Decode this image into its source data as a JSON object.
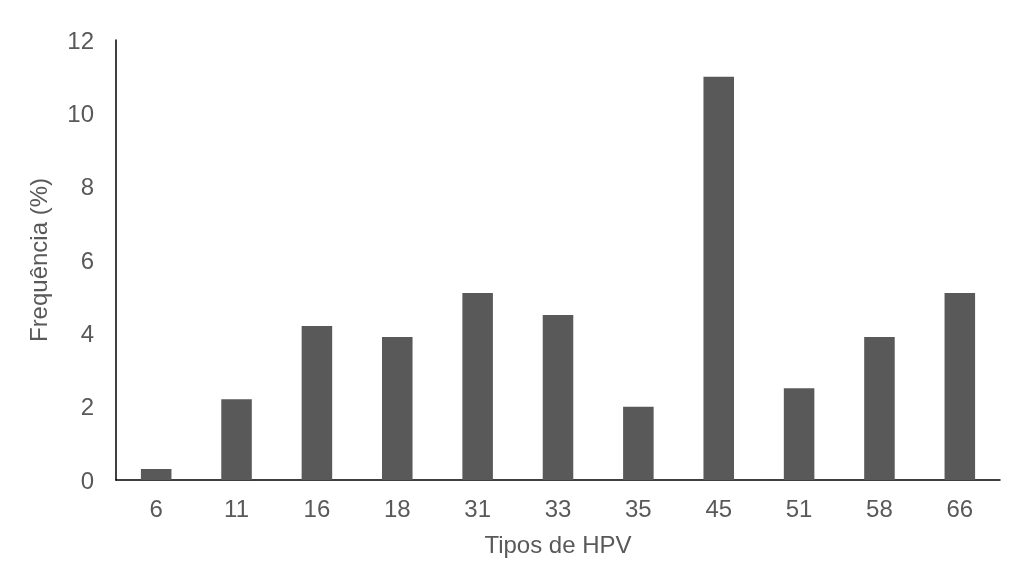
{
  "chart_data": {
    "type": "bar",
    "xlabel": "Tipos de HPV",
    "ylabel": "Frequência (%)",
    "categories": [
      "6",
      "11",
      "16",
      "18",
      "31",
      "33",
      "35",
      "45",
      "51",
      "58",
      "66"
    ],
    "values": [
      0.3,
      2.2,
      4.2,
      3.9,
      5.1,
      4.5,
      2.0,
      11.0,
      2.5,
      3.9,
      5.1
    ],
    "color": "#595959",
    "ylim": [
      0,
      12
    ],
    "yticks": [
      0,
      2,
      4,
      6,
      8,
      10,
      12
    ],
    "grid": false
  }
}
